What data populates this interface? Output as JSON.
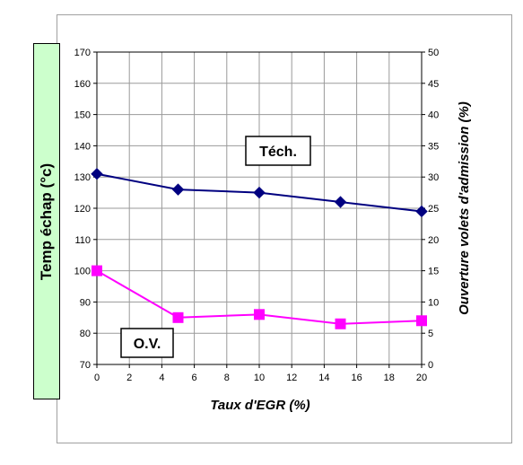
{
  "chart_data": {
    "type": "line",
    "x": [
      0,
      5,
      10,
      15,
      20
    ],
    "xlabel": "Taux d'EGR (%)",
    "ylabel": "Temp échap (°c)",
    "y2label": "Ouverture volets d'admission (%)",
    "xlim": [
      0,
      20
    ],
    "ylim": [
      70,
      170
    ],
    "y2lim": [
      0,
      50
    ],
    "xticks": [
      "0",
      "2",
      "4",
      "6",
      "8",
      "10",
      "12",
      "14",
      "16",
      "18",
      "20"
    ],
    "yticks": [
      "70",
      "80",
      "90",
      "100",
      "110",
      "120",
      "130",
      "140",
      "150",
      "160",
      "170"
    ],
    "y2ticks": [
      "0",
      "5",
      "10",
      "15",
      "20",
      "25",
      "30",
      "35",
      "40",
      "45",
      "50"
    ],
    "grid": true,
    "series": [
      {
        "axis": "left",
        "color": "#000080",
        "marker": "diamond",
        "values": [
          131,
          126,
          125,
          122,
          119
        ]
      },
      {
        "axis": "right",
        "color": "#ff00ff",
        "marker": "square",
        "values": [
          15,
          7.5,
          8,
          6.5,
          7
        ]
      }
    ],
    "annotations": [
      {
        "text": "Téch."
      },
      {
        "text": "O.V."
      }
    ]
  }
}
